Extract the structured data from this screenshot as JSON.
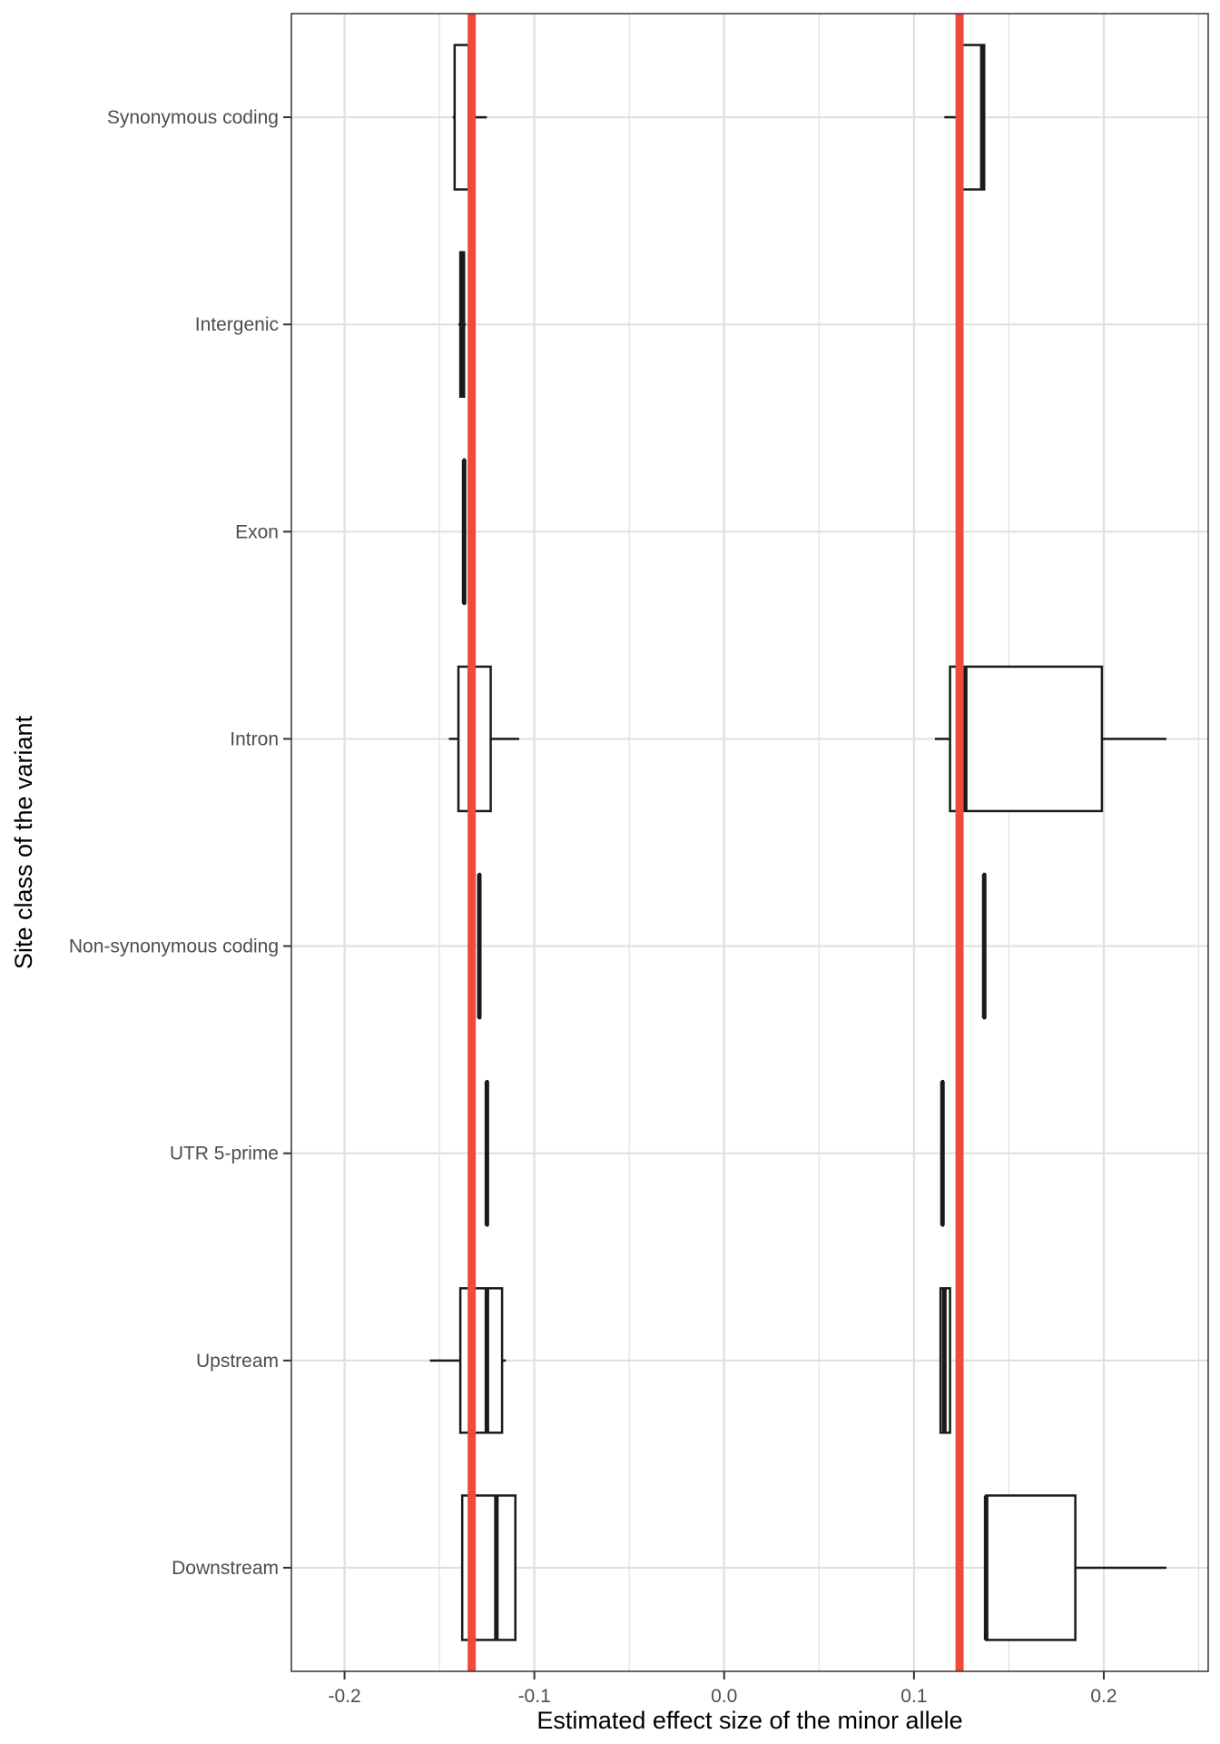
{
  "chart_data": {
    "type": "boxplot",
    "orientation": "horizontal",
    "xlabel": "Estimated effect size of the minor allele",
    "ylabel": "Site class of the variant",
    "xlim": [
      -0.228,
      0.255
    ],
    "x_ticks": [
      {
        "value": -0.2,
        "label": "-0.2"
      },
      {
        "value": -0.1,
        "label": "-0.1"
      },
      {
        "value": 0.0,
        "label": "0.0"
      },
      {
        "value": 0.1,
        "label": "0.1"
      },
      {
        "value": 0.2,
        "label": "0.2"
      }
    ],
    "grid": true,
    "categories": [
      "Synonymous coding",
      "Intergenic",
      "Exon",
      "Intron",
      "Non-synonymous coding",
      "UTR 5-prime",
      "Upstream",
      "Downstream"
    ],
    "reference_lines": [
      {
        "value": -0.133,
        "color": "#f04a3b"
      },
      {
        "value": 0.124,
        "color": "#f04a3b"
      }
    ],
    "boxes": [
      {
        "category": "Synonymous coding",
        "min": -0.143,
        "q1": -0.142,
        "median": -0.134,
        "q3": -0.133,
        "max": -0.125
      },
      {
        "category": "Synonymous coding",
        "min": 0.116,
        "q1": 0.123,
        "median": 0.136,
        "q3": 0.137,
        "max": 0.137
      },
      {
        "category": "Intergenic",
        "min": -0.14,
        "q1": -0.139,
        "median": -0.138,
        "q3": -0.137,
        "max": -0.136
      },
      {
        "category": "Exon",
        "min": -0.137,
        "q1": -0.137,
        "median": -0.137,
        "q3": -0.137,
        "max": -0.137
      },
      {
        "category": "Intron",
        "min": -0.145,
        "q1": -0.14,
        "median": -0.134,
        "q3": -0.123,
        "max": -0.108
      },
      {
        "category": "Intron",
        "min": 0.111,
        "q1": 0.119,
        "median": 0.127,
        "q3": 0.199,
        "max": 0.233
      },
      {
        "category": "Non-synonymous coding",
        "min": -0.129,
        "q1": -0.129,
        "median": -0.129,
        "q3": -0.129,
        "max": -0.129
      },
      {
        "category": "Non-synonymous coding",
        "min": 0.137,
        "q1": 0.137,
        "median": 0.137,
        "q3": 0.137,
        "max": 0.137
      },
      {
        "category": "UTR 5-prime",
        "min": -0.125,
        "q1": -0.125,
        "median": -0.125,
        "q3": -0.125,
        "max": -0.125
      },
      {
        "category": "UTR 5-prime",
        "min": 0.115,
        "q1": 0.115,
        "median": 0.115,
        "q3": 0.115,
        "max": 0.115
      },
      {
        "category": "Upstream",
        "min": -0.155,
        "q1": -0.139,
        "median": -0.125,
        "q3": -0.117,
        "max": -0.115
      },
      {
        "category": "Upstream",
        "min": 0.114,
        "q1": 0.114,
        "median": 0.116,
        "q3": 0.119,
        "max": 0.119
      },
      {
        "category": "Downstream",
        "min": -0.138,
        "q1": -0.138,
        "median": -0.12,
        "q3": -0.11,
        "max": -0.11
      },
      {
        "category": "Downstream",
        "min": 0.138,
        "q1": 0.138,
        "median": 0.138,
        "q3": 0.185,
        "max": 0.233
      }
    ],
    "box_color": "#1a1a1a",
    "grid_color": "#e0e0e0",
    "panel_border_color": "#333333"
  }
}
